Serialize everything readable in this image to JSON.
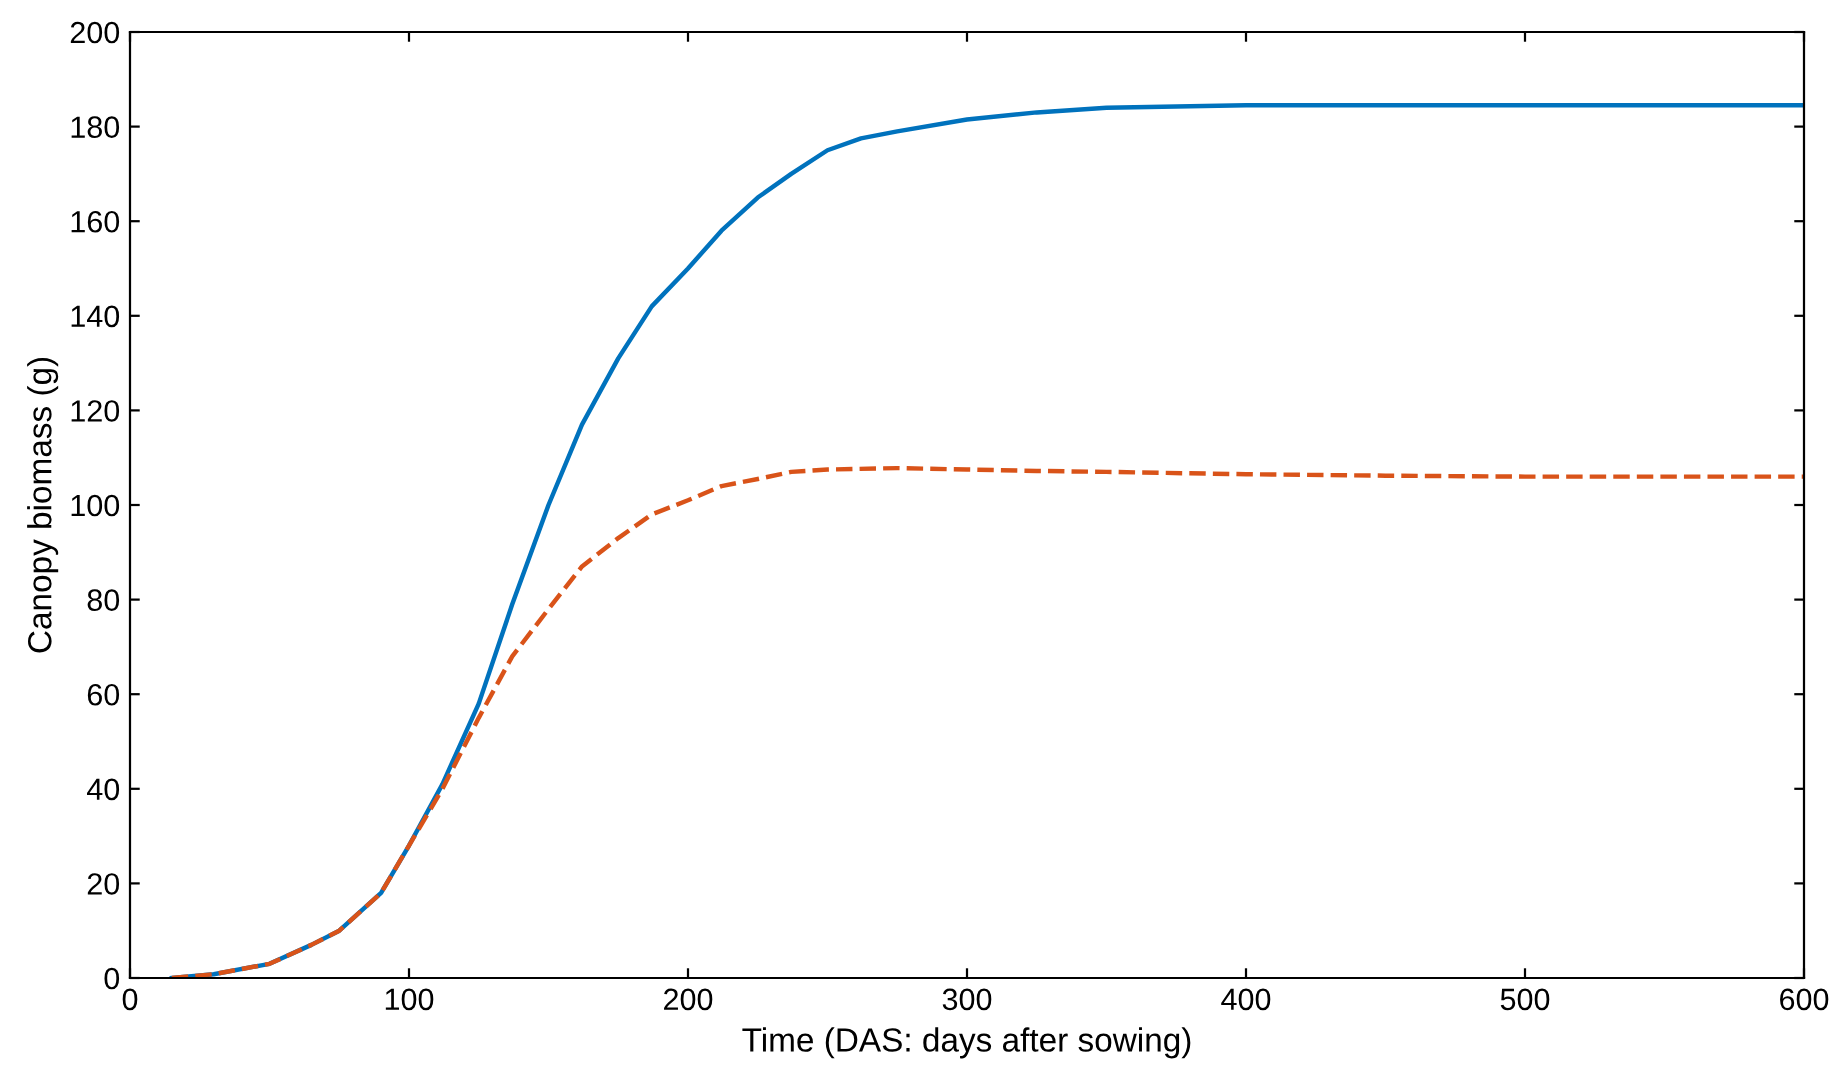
{
  "chart_data": {
    "type": "line",
    "xlabel": "Time (DAS: days after sowing)",
    "ylabel": "Canopy biomass (g)",
    "xlim": [
      0,
      600
    ],
    "ylim": [
      0,
      200
    ],
    "xticks": [
      0,
      100,
      200,
      300,
      400,
      500,
      600
    ],
    "yticks": [
      0,
      20,
      40,
      60,
      80,
      100,
      120,
      140,
      160,
      180,
      200
    ],
    "grid": false,
    "legend": false,
    "series": [
      {
        "color": "#0072bd",
        "line_style": "solid",
        "x": [
          15,
          30,
          50,
          65,
          75,
          90,
          100,
          112,
          125,
          137,
          150,
          162,
          175,
          187,
          200,
          212,
          225,
          237,
          250,
          262,
          275,
          300,
          325,
          350,
          400,
          450,
          500,
          550,
          600
        ],
        "values": [
          0,
          0.8,
          3,
          7,
          10,
          18,
          28,
          41,
          58,
          79,
          100,
          117,
          131,
          142,
          150,
          158,
          165,
          170,
          175,
          177.5,
          179,
          181.5,
          183,
          184,
          184.5,
          184.5,
          184.5,
          184.5,
          184.5
        ]
      },
      {
        "color": "#d95319",
        "line_style": "dashed",
        "x": [
          15,
          30,
          50,
          65,
          75,
          90,
          100,
          112,
          125,
          137,
          150,
          162,
          175,
          187,
          200,
          212,
          225,
          237,
          250,
          275,
          300,
          325,
          350,
          400,
          450,
          500,
          550,
          600
        ],
        "values": [
          0,
          0.8,
          3,
          7,
          10,
          18,
          28,
          40,
          55,
          68,
          78,
          87,
          93,
          98,
          101,
          104,
          105.5,
          107,
          107.5,
          107.8,
          107.5,
          107.2,
          107,
          106.5,
          106.2,
          106,
          106,
          106
        ]
      }
    ]
  }
}
